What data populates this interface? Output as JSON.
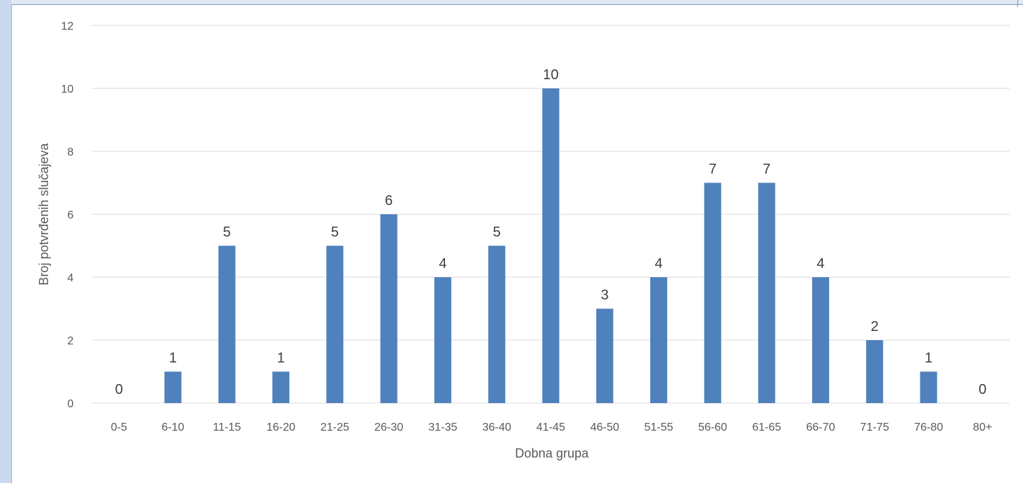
{
  "chart_data": {
    "type": "bar",
    "categories": [
      "0-5",
      "6-10",
      "11-15",
      "16-20",
      "21-25",
      "26-30",
      "31-35",
      "36-40",
      "41-45",
      "46-50",
      "51-55",
      "56-60",
      "61-65",
      "66-70",
      "71-75",
      "76-80",
      "80+"
    ],
    "values": [
      0,
      1,
      5,
      1,
      5,
      6,
      4,
      5,
      10,
      3,
      4,
      7,
      7,
      4,
      2,
      1,
      0
    ],
    "xlabel": "Dobna grupa",
    "ylabel": "Broj potvrđenih slučajeva",
    "ylim": [
      0,
      12
    ],
    "yticks": [
      0,
      2,
      4,
      6,
      8,
      10,
      12
    ],
    "grid": true,
    "data_labels": true,
    "bar_color": "#4f81bd",
    "grid_color": "#d9d9d9"
  }
}
